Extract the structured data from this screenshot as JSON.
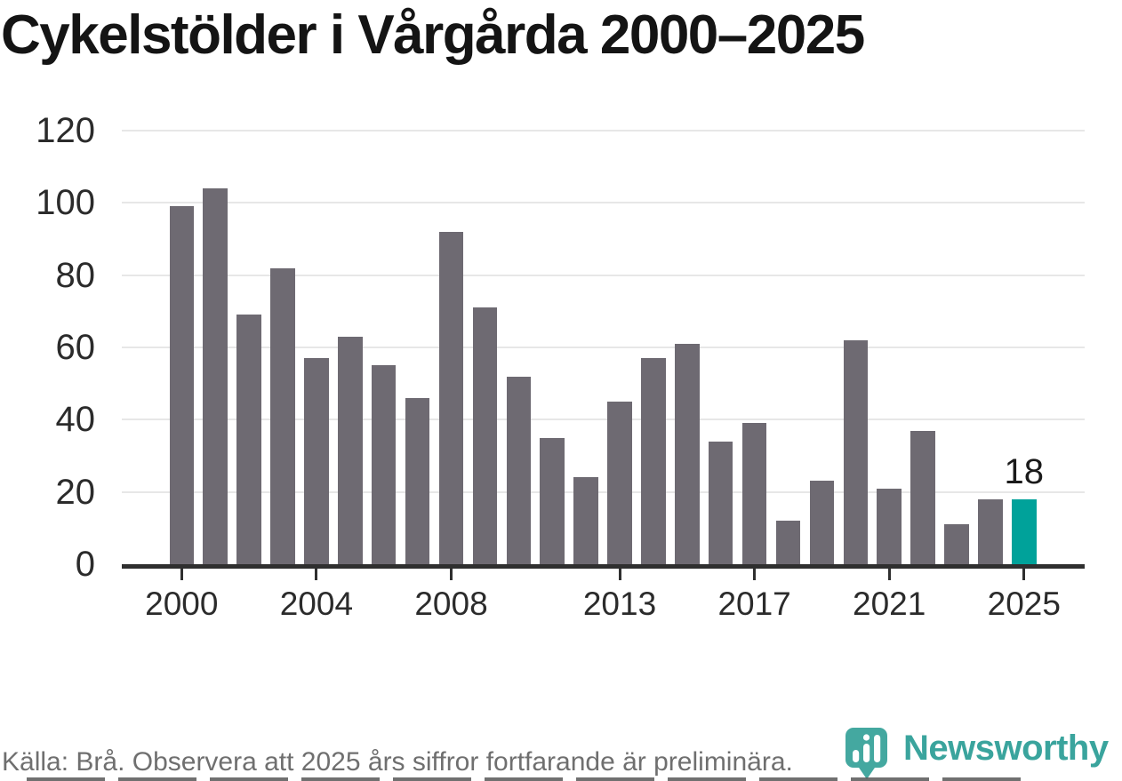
{
  "title": "Cykelstölder i Vårgårda 2000–2025",
  "footer": {
    "source_note": "Källa: Brå. Observera att 2025 års siffror fortfarande är preliminära."
  },
  "branding": {
    "logo_icon": "newsworthy-pin-icon",
    "logo_text": "Newsworthy"
  },
  "colors": {
    "bar": "#6e6a72",
    "highlight": "#00a29a",
    "logo_teal": "#3aa49d",
    "grid": "#e7e7e7",
    "axis": "#2f2f2f",
    "title_text": "#141414",
    "tick_text": "#2b2b2b",
    "footer_text": "#6f6f6f",
    "background": "#ffffff"
  },
  "chart_data": {
    "type": "bar",
    "title": "Cykelstölder i Vårgårda 2000–2025",
    "x": [
      2000,
      2001,
      2002,
      2003,
      2004,
      2005,
      2006,
      2007,
      2008,
      2009,
      2010,
      2011,
      2012,
      2013,
      2014,
      2015,
      2016,
      2017,
      2018,
      2019,
      2020,
      2021,
      2022,
      2023,
      2024,
      2025
    ],
    "values": [
      99,
      104,
      69,
      82,
      57,
      63,
      55,
      46,
      92,
      71,
      52,
      35,
      24,
      45,
      57,
      61,
      34,
      39,
      12,
      23,
      62,
      21,
      37,
      11,
      18,
      18
    ],
    "highlight_year": 2025,
    "highlight_label": "18",
    "xlabel": "",
    "ylabel": "",
    "ylim": [
      0,
      120
    ],
    "yticks": [
      0,
      20,
      40,
      60,
      80,
      100,
      120
    ],
    "xticks": [
      2000,
      2004,
      2008,
      2013,
      2017,
      2021,
      2025
    ],
    "grid": "horizontal",
    "legend": "none",
    "bar_color": "#6e6a72",
    "highlight_color": "#00a29a"
  }
}
